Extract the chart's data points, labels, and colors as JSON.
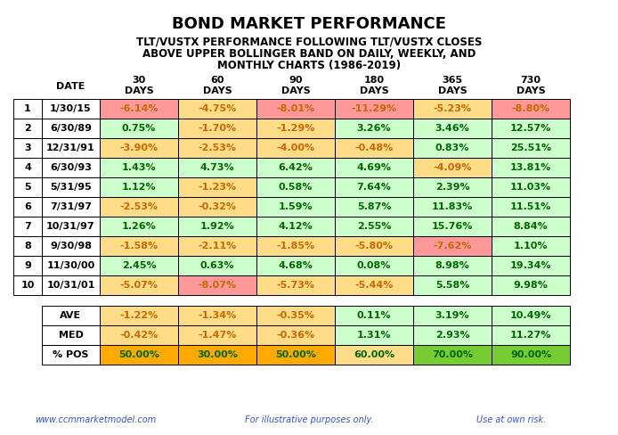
{
  "title": "BOND MARKET PERFORMANCE",
  "subtitle_lines": [
    "TLT/VUSTX PERFORMANCE FOLLOWING TLT/VUSTX CLOSES",
    "ABOVE UPPER BOLLINGER BAND ON DAILY, WEEKLY, AND",
    "MONTHLY CHARTS (1986-2019)"
  ],
  "periods": [
    "30",
    "60",
    "90",
    "180",
    "365",
    "730"
  ],
  "rows": [
    [
      1,
      "1/30/15",
      "-6.14%",
      "-4.75%",
      "-8.01%",
      "-11.29%",
      "-5.23%",
      "-8.80%"
    ],
    [
      2,
      "6/30/89",
      "0.75%",
      "-1.70%",
      "-1.29%",
      "3.26%",
      "3.46%",
      "12.57%"
    ],
    [
      3,
      "12/31/91",
      "-3.90%",
      "-2.53%",
      "-4.00%",
      "-0.48%",
      "0.83%",
      "25.51%"
    ],
    [
      4,
      "6/30/93",
      "1.43%",
      "4.73%",
      "6.42%",
      "4.69%",
      "-4.09%",
      "13.81%"
    ],
    [
      5,
      "5/31/95",
      "1.12%",
      "-1.23%",
      "0.58%",
      "7.64%",
      "2.39%",
      "11.03%"
    ],
    [
      6,
      "7/31/97",
      "-2.53%",
      "-0.32%",
      "1.59%",
      "5.87%",
      "11.83%",
      "11.51%"
    ],
    [
      7,
      "10/31/97",
      "1.26%",
      "1.92%",
      "4.12%",
      "2.55%",
      "15.76%",
      "8.84%"
    ],
    [
      8,
      "9/30/98",
      "-1.58%",
      "-2.11%",
      "-1.85%",
      "-5.80%",
      "-7.62%",
      "1.10%"
    ],
    [
      9,
      "11/30/00",
      "2.45%",
      "0.63%",
      "4.68%",
      "0.08%",
      "8.98%",
      "19.34%"
    ],
    [
      10,
      "10/31/01",
      "-5.07%",
      "-8.07%",
      "-5.73%",
      "-5.44%",
      "5.58%",
      "9.98%"
    ]
  ],
  "cell_colors": [
    [
      "#ff9999",
      "#ffdd88",
      "#ff9999",
      "#ff9999",
      "#ffdd88",
      "#ff9999"
    ],
    [
      "#ccffcc",
      "#ffdd88",
      "#ffdd88",
      "#ccffcc",
      "#ccffcc",
      "#ccffcc"
    ],
    [
      "#ffdd88",
      "#ffdd88",
      "#ffdd88",
      "#ffdd88",
      "#ccffcc",
      "#ccffcc"
    ],
    [
      "#ccffcc",
      "#ccffcc",
      "#ccffcc",
      "#ccffcc",
      "#ffdd88",
      "#ccffcc"
    ],
    [
      "#ccffcc",
      "#ffdd88",
      "#ccffcc",
      "#ccffcc",
      "#ccffcc",
      "#ccffcc"
    ],
    [
      "#ffdd88",
      "#ffdd88",
      "#ccffcc",
      "#ccffcc",
      "#ccffcc",
      "#ccffcc"
    ],
    [
      "#ccffcc",
      "#ccffcc",
      "#ccffcc",
      "#ccffcc",
      "#ccffcc",
      "#ccffcc"
    ],
    [
      "#ffdd88",
      "#ffdd88",
      "#ffdd88",
      "#ffdd88",
      "#ff9999",
      "#ccffcc"
    ],
    [
      "#ccffcc",
      "#ccffcc",
      "#ccffcc",
      "#ccffcc",
      "#ccffcc",
      "#ccffcc"
    ],
    [
      "#ffdd88",
      "#ff9999",
      "#ffdd88",
      "#ffdd88",
      "#ccffcc",
      "#ccffcc"
    ]
  ],
  "summary_rows": [
    [
      "AVE",
      "-1.22%",
      "-1.34%",
      "-0.35%",
      "0.11%",
      "3.19%",
      "10.49%"
    ],
    [
      "MED",
      "-0.42%",
      "-1.47%",
      "-0.36%",
      "1.31%",
      "2.93%",
      "11.27%"
    ],
    [
      "% POS",
      "50.00%",
      "30.00%",
      "50.00%",
      "60.00%",
      "70.00%",
      "90.00%"
    ]
  ],
  "summary_colors": [
    [
      "#ffdd88",
      "#ffdd88",
      "#ffdd88",
      "#ccffcc",
      "#ccffcc",
      "#ccffcc"
    ],
    [
      "#ffdd88",
      "#ffdd88",
      "#ffdd88",
      "#ccffcc",
      "#ccffcc",
      "#ccffcc"
    ],
    [
      "#ffaa00",
      "#ffaa00",
      "#ffaa00",
      "#ffdd88",
      "#77cc33",
      "#77cc33"
    ]
  ],
  "footer_left": "www.ccmmarketmodel.com",
  "footer_mid": "For illustrative purposes only.",
  "footer_right": "Use at own risk.",
  "footer_color": "#3355bb",
  "col_neg_color": "#cc6600",
  "col_pos_color": "#006600",
  "title_fontsize": 13,
  "subtitle_fontsize": 8.5,
  "header_fontsize": 8,
  "cell_fontsize": 8,
  "footer_fontsize": 7
}
